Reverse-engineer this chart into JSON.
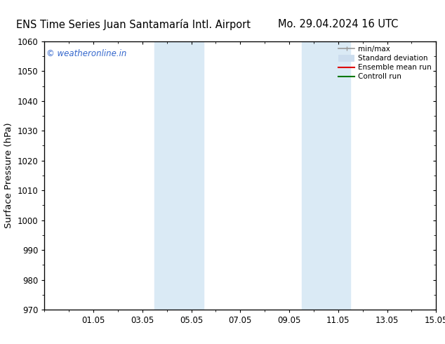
{
  "title_left": "ENS Time Series Juan Santamaría Intl. Airport",
  "title_right": "Mo. 29.04.2024 16 UTC",
  "ylabel": "Surface Pressure (hPa)",
  "ylim": [
    970,
    1060
  ],
  "yticks": [
    970,
    980,
    990,
    1000,
    1010,
    1020,
    1030,
    1040,
    1050,
    1060
  ],
  "xlim": [
    0,
    16
  ],
  "xtick_labels": [
    "01.05",
    "03.05",
    "05.05",
    "07.05",
    "09.05",
    "11.05",
    "13.05",
    "15.05"
  ],
  "xtick_positions": [
    2,
    4,
    6,
    8,
    10,
    12,
    14,
    16
  ],
  "shaded_bands": [
    {
      "x_start": 4.5,
      "x_end": 5.5,
      "color": "#daeaf5"
    },
    {
      "x_start": 5.5,
      "x_end": 6.5,
      "color": "#daeaf5"
    },
    {
      "x_start": 10.5,
      "x_end": 11.5,
      "color": "#daeaf5"
    },
    {
      "x_start": 11.5,
      "x_end": 12.5,
      "color": "#daeaf5"
    }
  ],
  "watermark_text": "© weatheronline.in",
  "watermark_color": "#3366cc",
  "legend_entries": [
    {
      "label": "min/max",
      "color": "#999999",
      "lw": 1.2
    },
    {
      "label": "Standard deviation",
      "color": "#ccddee",
      "lw": 7
    },
    {
      "label": "Ensemble mean run",
      "color": "#dd0000",
      "lw": 1.5
    },
    {
      "label": "Controll run",
      "color": "#007700",
      "lw": 1.5
    }
  ],
  "background_color": "#ffffff",
  "tick_fontsize": 8.5,
  "title_fontsize": 10.5,
  "ylabel_fontsize": 9.5,
  "watermark_fontsize": 8.5
}
